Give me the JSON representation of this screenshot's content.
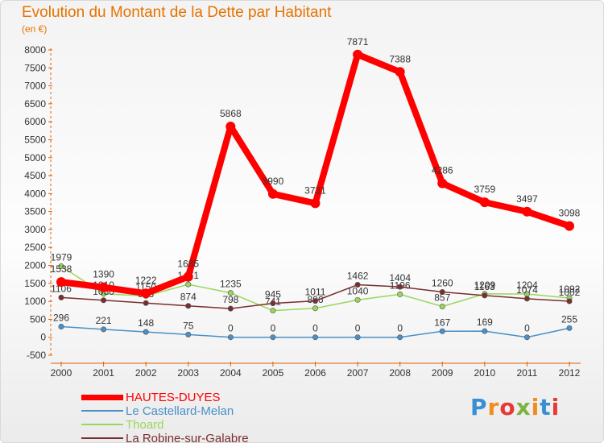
{
  "chart_data": {
    "type": "line",
    "title": "Evolution du Montant de la Dette par Habitant",
    "subtitle": "(en €)",
    "x": [
      "2000",
      "2001",
      "2002",
      "2003",
      "2004",
      "2005",
      "2006",
      "2007",
      "2008",
      "2009",
      "2010",
      "2011",
      "2012"
    ],
    "ylim": [
      -500,
      8000
    ],
    "yticks": [
      -500,
      0,
      500,
      1000,
      1500,
      2000,
      2500,
      3000,
      3500,
      4000,
      4500,
      5000,
      5500,
      6000,
      6500,
      7000,
      7500,
      8000
    ],
    "grid": false,
    "legend_placement": "bottom-left",
    "series": [
      {
        "name": "HAUTES-DUYES",
        "color": "#ff0000",
        "values": [
          1538,
          1390,
          1222,
          1685,
          5868,
          3990,
          3731,
          7871,
          7388,
          4286,
          3759,
          3497,
          3098
        ]
      },
      {
        "name": "Le Castellard-Melan",
        "color": "#4a90c6",
        "values": [
          296,
          221,
          148,
          75,
          0,
          0,
          0,
          0,
          0,
          167,
          169,
          0,
          255
        ]
      },
      {
        "name": "Thoard",
        "color": "#99d65c",
        "values": [
          1979,
          1210,
          1150,
          1471,
          1235,
          741,
          806,
          1040,
          1196,
          857,
          1209,
          1204,
          1092
        ]
      },
      {
        "name": "La Robine-sur-Galabre",
        "color": "#7a2e2e",
        "values": [
          1106,
          1030,
          953,
          874,
          798,
          945,
          1011,
          1462,
          1404,
          1260,
          1163,
          1074,
          1002
        ]
      }
    ]
  },
  "logo": {
    "letters": [
      "P",
      "r",
      "o",
      "x",
      "i",
      "t",
      "i"
    ],
    "colors": [
      "#3a8fd4",
      "#f28c1e",
      "#e53935",
      "#7cb342",
      "#f28c1e",
      "#3a8fd4",
      "#e53935"
    ]
  }
}
